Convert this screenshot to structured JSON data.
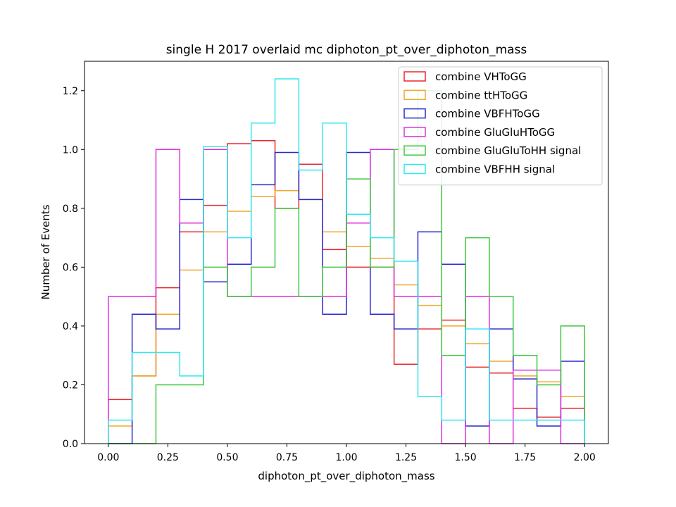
{
  "chart_data": {
    "type": "histogram",
    "title": "single H 2017 overlaid mc diphoton_pt_over_diphoton_mass",
    "xlabel": "diphoton_pt_over_diphoton_mass",
    "ylabel": "Number of Events",
    "xlim": [
      -0.1,
      2.1
    ],
    "ylim": [
      0,
      1.3
    ],
    "bin_edges": [
      0.0,
      0.1,
      0.2,
      0.3,
      0.4,
      0.5,
      0.6,
      0.7,
      0.8,
      0.9,
      1.0,
      1.1,
      1.2,
      1.3,
      1.4,
      1.5,
      1.6,
      1.7,
      1.8,
      1.9,
      2.0
    ],
    "xticks": [
      0.0,
      0.25,
      0.5,
      0.75,
      1.0,
      1.25,
      1.5,
      1.75,
      2.0
    ],
    "xtick_labels": [
      "0.00",
      "0.25",
      "0.50",
      "0.75",
      "1.00",
      "1.25",
      "1.50",
      "1.75",
      "2.00"
    ],
    "yticks": [
      0.0,
      0.2,
      0.4,
      0.6,
      0.8,
      1.0,
      1.2
    ],
    "ytick_labels": [
      "0.0",
      "0.2",
      "0.4",
      "0.6",
      "0.8",
      "1.0",
      "1.2"
    ],
    "grid": false,
    "legend_position": "top-right",
    "series": [
      {
        "name": "combine VHToGG",
        "color": "#e8282e",
        "values": [
          0.15,
          0.23,
          0.53,
          0.72,
          0.81,
          1.02,
          1.03,
          0.8,
          0.95,
          0.66,
          0.6,
          0.6,
          0.27,
          0.39,
          0.42,
          0.26,
          0.24,
          0.12,
          0.09,
          0.12
        ]
      },
      {
        "name": "combine ttHToGG",
        "color": "#f0a830",
        "values": [
          0.06,
          0.23,
          0.44,
          0.59,
          0.72,
          0.79,
          0.84,
          0.86,
          0.83,
          0.72,
          0.67,
          0.63,
          0.54,
          0.47,
          0.4,
          0.34,
          0.28,
          0.23,
          0.21,
          0.16
        ]
      },
      {
        "name": "combine VBFHToGG",
        "color": "#2828d0",
        "values": [
          0.0,
          0.44,
          0.39,
          0.83,
          0.55,
          0.61,
          0.88,
          0.99,
          0.83,
          0.44,
          0.99,
          0.44,
          0.39,
          0.72,
          0.61,
          0.06,
          0.39,
          0.22,
          0.06,
          0.28
        ]
      },
      {
        "name": "combine GluGluHToGG",
        "color": "#e030e0",
        "values": [
          0.5,
          0.5,
          1.0,
          0.75,
          1.0,
          0.5,
          0.5,
          0.5,
          0.5,
          0.5,
          0.75,
          1.0,
          0.5,
          0.5,
          0.0,
          0.5,
          0.0,
          0.25,
          0.25,
          0.0
        ]
      },
      {
        "name": "combine GluGluToHH signal",
        "color": "#40c840",
        "values": [
          0.0,
          0.0,
          0.2,
          0.2,
          0.6,
          0.5,
          0.6,
          0.8,
          0.5,
          0.6,
          0.9,
          0.6,
          1.0,
          1.2,
          0.3,
          0.7,
          0.5,
          0.3,
          0.2,
          0.4
        ]
      },
      {
        "name": "combine VBFHH signal",
        "color": "#30e8f0",
        "values": [
          0.08,
          0.31,
          0.31,
          0.23,
          1.01,
          0.7,
          1.09,
          1.24,
          0.93,
          1.09,
          0.78,
          0.7,
          0.62,
          0.16,
          0.08,
          0.39,
          0.08,
          0.08,
          0.08,
          0.08
        ]
      }
    ]
  }
}
